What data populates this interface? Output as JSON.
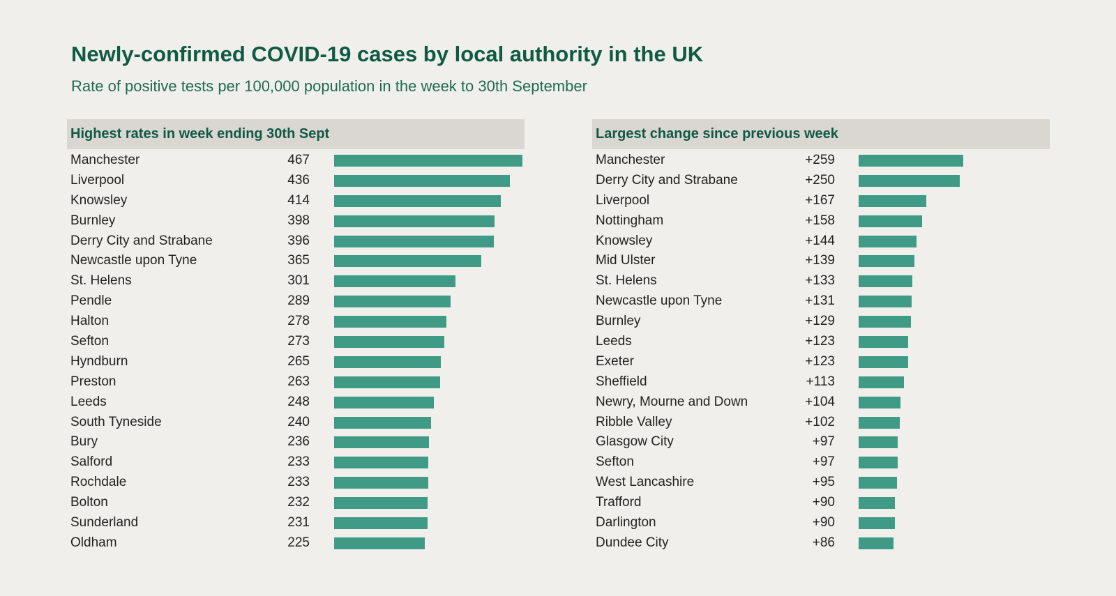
{
  "title": "Newly-confirmed COVID-19 cases by local authority in the UK",
  "subtitle": "Rate of positive tests per 100,000 population in the week to 30th September",
  "colors": {
    "bar": "#3f9a86",
    "title": "#0f5a43",
    "header_bg": "#dad6d2",
    "background": "#f0efeb"
  },
  "chart_data": [
    {
      "type": "bar",
      "orientation": "horizontal",
      "title": "Highest rates in week ending 30th Sept",
      "categories": [
        "Manchester",
        "Liverpool",
        "Knowsley",
        "Burnley",
        "Derry City and Strabane",
        "Newcastle upon Tyne",
        "St. Helens",
        "Pendle",
        "Halton",
        "Sefton",
        "Hyndburn",
        "Preston",
        "Leeds",
        "South Tyneside",
        "Bury",
        "Salford",
        "Rochdale",
        "Bolton",
        "Sunderland",
        "Oldham"
      ],
      "values": [
        467,
        436,
        414,
        398,
        396,
        365,
        301,
        289,
        278,
        273,
        265,
        263,
        248,
        240,
        236,
        233,
        233,
        232,
        231,
        225
      ],
      "value_labels": [
        "467",
        "436",
        "414",
        "398",
        "396",
        "365",
        "301",
        "289",
        "278",
        "273",
        "265",
        "263",
        "248",
        "240",
        "236",
        "233",
        "233",
        "232",
        "231",
        "225"
      ],
      "xlim": [
        0,
        467
      ]
    },
    {
      "type": "bar",
      "orientation": "horizontal",
      "title": "Largest change since previous week",
      "categories": [
        "Manchester",
        "Derry City and Strabane",
        "Liverpool",
        "Nottingham",
        "Knowsley",
        "Mid Ulster",
        "St. Helens",
        "Newcastle upon Tyne",
        "Burnley",
        "Leeds",
        "Exeter",
        "Sheffield",
        "Newry, Mourne and Down",
        "Ribble Valley",
        "Glasgow City",
        "Sefton",
        "West Lancashire",
        "Trafford",
        "Darlington",
        "Dundee City"
      ],
      "values": [
        259,
        250,
        167,
        158,
        144,
        139,
        133,
        131,
        129,
        123,
        123,
        113,
        104,
        102,
        97,
        97,
        95,
        90,
        90,
        86
      ],
      "value_labels": [
        "+259",
        "+250",
        "+167",
        "+158",
        "+144",
        "+139",
        "+133",
        "+131",
        "+129",
        "+123",
        "+123",
        "+113",
        "+104",
        "+102",
        "+97",
        "+97",
        "+95",
        "+90",
        "+90",
        "+86"
      ],
      "xlim": [
        0,
        467
      ]
    }
  ]
}
